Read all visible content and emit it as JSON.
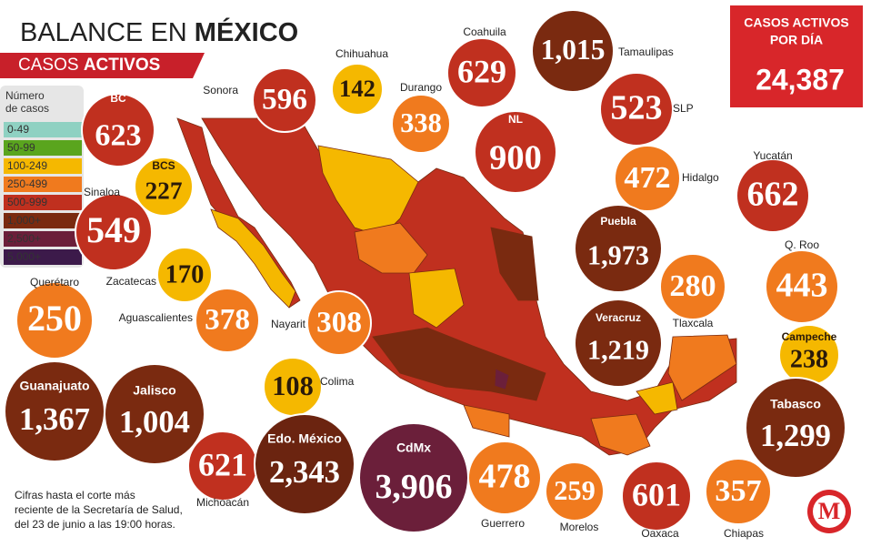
{
  "header": {
    "title_plain": "BALANCE EN",
    "title_bold": "MÉXICO",
    "subtitle_plain": "CASOS",
    "subtitle_bold": "ACTIVOS"
  },
  "legend": {
    "title_lines": [
      "Número",
      "de casos"
    ],
    "items": [
      {
        "label": "0-49",
        "color": "#8fd1c2"
      },
      {
        "label": "50-99",
        "color": "#5aa51e"
      },
      {
        "label": "100-249",
        "color": "#f5b800"
      },
      {
        "label": "250-499",
        "color": "#f07a1e"
      },
      {
        "label": "500-999",
        "color": "#c0301f"
      },
      {
        "label": "1,000+",
        "color": "#7a2a10"
      },
      {
        "label": "2,500+",
        "color": "#6b1f3a"
      },
      {
        "label": "5,000+",
        "color": "#3c1a4a"
      }
    ]
  },
  "daily_box": {
    "title_lines": [
      "CASOS ACTIVOS",
      "POR DÍA"
    ],
    "value": "24,387"
  },
  "states": [
    {
      "name": "BC",
      "value": "623",
      "color": "#c0301f"
    },
    {
      "name": "Sonora",
      "value": "596",
      "color": "#c0301f"
    },
    {
      "name": "Chihuahua",
      "value": "142",
      "color": "#f5b800"
    },
    {
      "name": "Durango",
      "value": "338",
      "color": "#f07a1e"
    },
    {
      "name": "Coahuila",
      "value": "629",
      "color": "#c0301f"
    },
    {
      "name": "Tamaulipas",
      "value": "1,015",
      "color": "#7a2a10"
    },
    {
      "name": "SLP",
      "value": "523",
      "color": "#c0301f"
    },
    {
      "name": "NL",
      "value": "900",
      "color": "#c0301f"
    },
    {
      "name": "BCS",
      "value": "227",
      "color": "#f5b800"
    },
    {
      "name": "Hidalgo",
      "value": "472",
      "color": "#f07a1e"
    },
    {
      "name": "Yucatán",
      "value": "662",
      "color": "#c0301f"
    },
    {
      "name": "Sinaloa",
      "value": "549",
      "color": "#c0301f"
    },
    {
      "name": "Puebla",
      "value": "1,973",
      "color": "#7a2a10"
    },
    {
      "name": "Zacatecas",
      "value": "170",
      "color": "#f5b800"
    },
    {
      "name": "Q. Roo",
      "value": "443",
      "color": "#f07a1e"
    },
    {
      "name": "Tlaxcala",
      "value": "280",
      "color": "#f07a1e"
    },
    {
      "name": "Querétaro",
      "value": "250",
      "color": "#f07a1e"
    },
    {
      "name": "Aguascalientes",
      "value": "378",
      "color": "#f07a1e"
    },
    {
      "name": "Nayarit",
      "value": "308",
      "color": "#f07a1e"
    },
    {
      "name": "Veracruz",
      "value": "1,219",
      "color": "#7a2a10"
    },
    {
      "name": "Campeche",
      "value": "238",
      "color": "#f5b800"
    },
    {
      "name": "Colima",
      "value": "108",
      "color": "#f5b800"
    },
    {
      "name": "Guanajuato",
      "value": "1,367",
      "color": "#7a2a10"
    },
    {
      "name": "Jalisco",
      "value": "1,004",
      "color": "#7a2a10"
    },
    {
      "name": "Tabasco",
      "value": "1,299",
      "color": "#7a2a10"
    },
    {
      "name": "Michoacán",
      "value": "621",
      "color": "#c0301f"
    },
    {
      "name": "Edo. México",
      "value": "2,343",
      "color": "#6b2410"
    },
    {
      "name": "CdMx",
      "value": "3,906",
      "color": "#6b1f3a"
    },
    {
      "name": "Guerrero",
      "value": "478",
      "color": "#f07a1e"
    },
    {
      "name": "Morelos",
      "value": "259",
      "color": "#f07a1e"
    },
    {
      "name": "Oaxaca",
      "value": "601",
      "color": "#c0301f"
    },
    {
      "name": "Chiapas",
      "value": "357",
      "color": "#f07a1e"
    }
  ],
  "footnote": [
    "Cifras hasta el corte más",
    "reciente de la Secretaría de Salud,",
    "del 23 de junio a las 19:00 horas."
  ],
  "logo": "M"
}
